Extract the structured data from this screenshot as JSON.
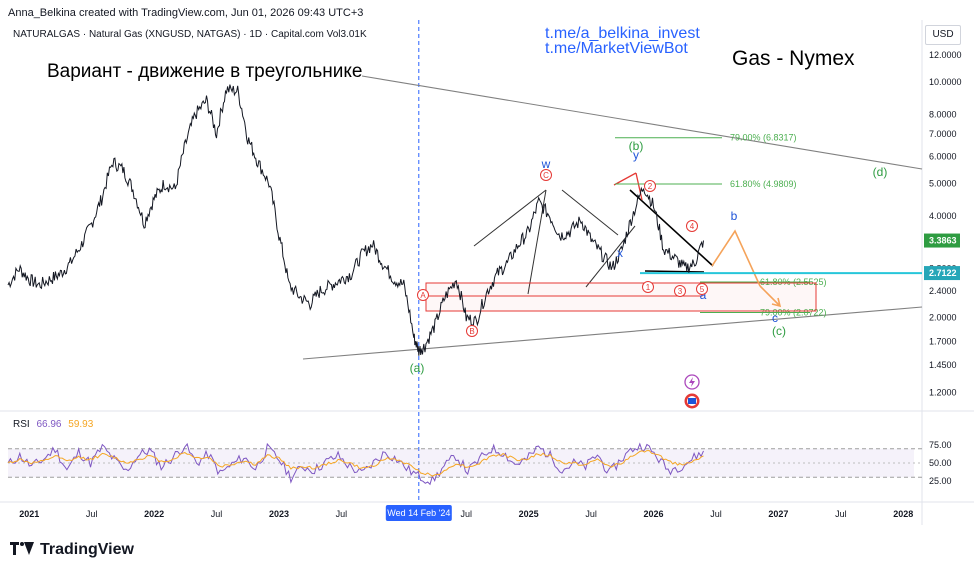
{
  "header": {
    "credit": "Anna_Belkina created with TradingView.com, Jun 01, 2026 09:43 UTC+3",
    "symbol_line": "NATURALGAS · Natural Gas (XNGUSD, NATGAS) · 1D · Capital.com  Vol3.01K",
    "currency": "USD"
  },
  "annotations": {
    "title_variant": "Вариант - движение в треугольнике",
    "title_gas": "Gas - Nymex",
    "link_1": "t.me/a_belkina_invest",
    "link_2": "t.me/MarketViewBot"
  },
  "footer": {
    "logo_text": "TradingView"
  },
  "colors": {
    "price_line": "#131722",
    "trendline": "#808080",
    "fib_green": "#4caf50",
    "wave_red": "#e53935",
    "wave_blue": "#1e54d8",
    "wave_green": "#2e9c41",
    "projection_orange": "#f5a35a",
    "support_cyan": "#26c6da",
    "rsi_line": "#7e57c2",
    "rsi_signal": "#f5a623",
    "crosshair": "#2962ff"
  },
  "chart_data": [
    {
      "type": "line",
      "title": "NATURALGAS · Natural Gas (XNGUSD, NATGAS) · 1D · Capital.com",
      "y_scale": "log",
      "y_ticks": [
        12.0,
        10.0,
        8.0,
        7.0,
        6.0,
        5.0,
        4.0,
        2.8,
        2.4,
        2.0,
        1.7,
        1.45,
        1.2
      ],
      "y_tick_labels": [
        "12.0000",
        "10.0000",
        "8.0000",
        "7.0000",
        "6.0000",
        "5.0000",
        "4.0000",
        "2.8000",
        "2.4000",
        "2.0000",
        "1.7000",
        "1.4500",
        "1.2000"
      ],
      "x_tick_labels": [
        "2021",
        "Jul",
        "2022",
        "Jul",
        "2023",
        "Jul",
        "Wed 14 Feb '24",
        "Jul",
        "2025",
        "Jul",
        "2026",
        "Jul",
        "2027",
        "Jul",
        "2028"
      ],
      "x_ticks": [
        2021.0,
        2021.5,
        2022.0,
        2022.5,
        2023.0,
        2023.5,
        2024.12,
        2024.5,
        2025.0,
        2025.5,
        2026.0,
        2026.5,
        2027.0,
        2027.5,
        2028.0
      ],
      "series": [
        {
          "x": [
            2020.83,
            2020.92,
            2021.0,
            2021.08,
            2021.17,
            2021.25,
            2021.33,
            2021.42,
            2021.5,
            2021.58,
            2021.67,
            2021.75,
            2021.83,
            2021.92,
            2022.0,
            2022.08,
            2022.17,
            2022.25,
            2022.33,
            2022.42,
            2022.5,
            2022.58,
            2022.67,
            2022.75,
            2022.83,
            2022.92,
            2023.0,
            2023.08,
            2023.17,
            2023.25,
            2023.33,
            2023.42,
            2023.5,
            2023.58,
            2023.67,
            2023.75,
            2023.83,
            2023.92,
            2024.0,
            2024.08,
            2024.12,
            2024.17,
            2024.25,
            2024.33,
            2024.42,
            2024.5,
            2024.58,
            2024.67,
            2024.75,
            2024.83,
            2024.92,
            2025.0,
            2025.08,
            2025.17,
            2025.25,
            2025.33,
            2025.42,
            2025.5,
            2025.58,
            2025.67,
            2025.75,
            2025.83,
            2025.92,
            2026.0,
            2026.08,
            2026.17,
            2026.25,
            2026.33,
            2026.4
          ],
          "values": [
            2.5,
            2.8,
            2.6,
            2.5,
            2.6,
            2.7,
            2.9,
            3.3,
            3.8,
            4.5,
            5.8,
            5.5,
            4.8,
            3.8,
            4.5,
            5.0,
            4.8,
            6.5,
            8.0,
            8.8,
            7.0,
            9.5,
            9.4,
            6.8,
            5.8,
            5.0,
            3.5,
            2.5,
            2.3,
            2.2,
            2.4,
            2.5,
            2.6,
            2.7,
            3.1,
            3.3,
            2.9,
            2.6,
            2.5,
            1.75,
            1.6,
            1.65,
            1.9,
            2.3,
            2.6,
            2.0,
            1.95,
            2.4,
            2.7,
            2.9,
            3.3,
            3.6,
            4.4,
            4.0,
            3.5,
            3.6,
            3.9,
            3.4,
            3.1,
            2.8,
            3.2,
            4.0,
            4.9,
            4.3,
            3.2,
            3.0,
            2.8,
            2.9,
            3.3863
          ]
        }
      ],
      "last_price": "3.3863",
      "support_level": "2.7122",
      "fib_levels": [
        {
          "label": "79.00% (6.8317)",
          "value": 6.8317
        },
        {
          "label": "61.80% (4.9809)",
          "value": 4.9809
        },
        {
          "label": "61.80% (2.5525)",
          "value": 2.5525
        },
        {
          "label": "79.00% (2.0722)",
          "value": 2.0722
        }
      ],
      "wave_labels": [
        {
          "text": "(a)",
          "color": "green"
        },
        {
          "text": "(b)",
          "color": "green"
        },
        {
          "text": "(c)",
          "color": "green"
        },
        {
          "text": "(d)",
          "color": "green"
        },
        {
          "text": "w",
          "color": "blue"
        },
        {
          "text": "x",
          "color": "blue"
        },
        {
          "text": "y",
          "color": "blue"
        },
        {
          "text": "a",
          "color": "blue"
        },
        {
          "text": "b",
          "color": "blue"
        },
        {
          "text": "c",
          "color": "blue"
        },
        {
          "text": "A",
          "color": "red-circled"
        },
        {
          "text": "B",
          "color": "red-circled"
        },
        {
          "text": "C",
          "color": "red-circled"
        },
        {
          "text": "1",
          "color": "red-circled"
        },
        {
          "text": "2",
          "color": "red-circled"
        },
        {
          "text": "3",
          "color": "red-circled"
        },
        {
          "text": "4",
          "color": "red-circled"
        },
        {
          "text": "5",
          "color": "red-circled"
        }
      ]
    },
    {
      "type": "line",
      "title": "RSI",
      "rsi_value": "66.96",
      "rsi_signal_value": "59.93",
      "y_ticks": [
        75.0,
        50.0,
        25.0
      ],
      "y_tick_labels": [
        "75.00",
        "50.00",
        "25.00"
      ],
      "series": [
        {
          "name": "RSI",
          "values": [
            48,
            60,
            45,
            55,
            70,
            40,
            65,
            50,
            72,
            55,
            38,
            60,
            68,
            45,
            58,
            75,
            50,
            62,
            35,
            48,
            58,
            42,
            70,
            55,
            30,
            45,
            40,
            52,
            60,
            45,
            35,
            50,
            65,
            55,
            40,
            30,
            25,
            45,
            60,
            38,
            55,
            70,
            65,
            48,
            55,
            72,
            60,
            40,
            50,
            45,
            62,
            35,
            55,
            70,
            75,
            60,
            40,
            45,
            55,
            66.96
          ]
        },
        {
          "name": "Signal",
          "values": [
            50,
            55,
            50,
            52,
            60,
            52,
            58,
            55,
            62,
            58,
            50,
            55,
            60,
            52,
            55,
            65,
            57,
            58,
            45,
            48,
            53,
            48,
            60,
            57,
            42,
            45,
            43,
            48,
            54,
            50,
            42,
            46,
            56,
            55,
            47,
            38,
            32,
            38,
            50,
            44,
            50,
            60,
            62,
            55,
            55,
            63,
            60,
            50,
            50,
            47,
            55,
            45,
            50,
            60,
            67,
            63,
            52,
            48,
            52,
            59.93
          ]
        }
      ]
    }
  ]
}
